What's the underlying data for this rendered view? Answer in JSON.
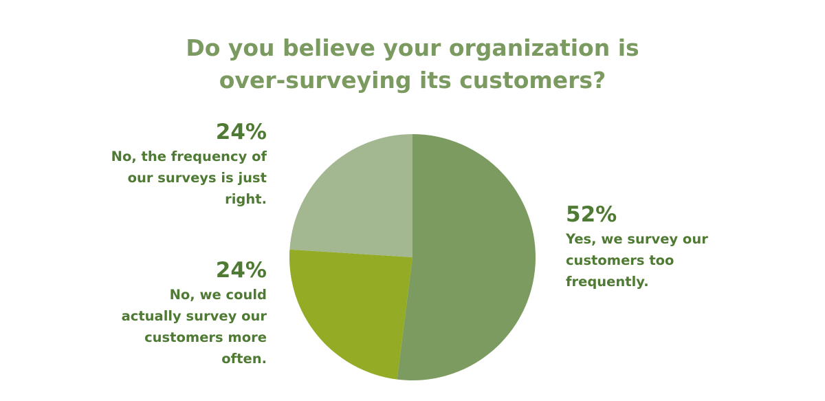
{
  "chart_data": {
    "type": "pie",
    "title": [
      "Do you believe your organization is",
      "over-surveying its customers?"
    ],
    "slices": [
      {
        "label": "Yes, we survey our customers too frequently.",
        "label_lines": [
          "Yes, we survey our",
          "customers too",
          "frequently."
        ],
        "value": 52,
        "value_label": "52%",
        "color": "#7c9b60"
      },
      {
        "label": "No, we could actually survey our customers more often.",
        "label_lines": [
          "No, we could",
          "actually survey our",
          "customers more",
          "often."
        ],
        "value": 24,
        "value_label": "24%",
        "color": "#93ab25"
      },
      {
        "label": "No, the frequency of our surveys is just right.",
        "label_lines": [
          "No, the frequency of",
          "our surveys is just",
          "right."
        ],
        "value": 24,
        "value_label": "24%",
        "color": "#a3b791"
      }
    ]
  },
  "colors": {
    "title": "#7a9a60",
    "labels": "#4f7a33",
    "background": "#ffffff"
  }
}
